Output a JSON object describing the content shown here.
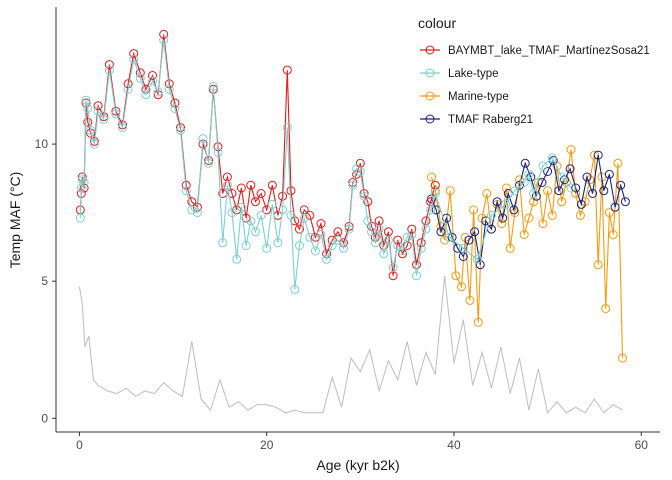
{
  "chart_data": {
    "type": "line",
    "xlabel": "Age (kyr b2k)",
    "ylabel": "Temp MAF (°C)",
    "xlim": [
      -2.5,
      62
    ],
    "ylim": [
      -0.5,
      15
    ],
    "x_ticks": [
      0,
      20,
      40,
      60
    ],
    "y_ticks": [
      0,
      5,
      10
    ],
    "legend_title": "colour",
    "legend_position": "top-right",
    "grid": false,
    "series": [
      {
        "name": "BAYMBT_lake_TMAF_MartínezSosa21",
        "color": "#e41a1c",
        "x": [
          0.1,
          0.2,
          0.3,
          0.5,
          0.7,
          0.9,
          1.2,
          1.6,
          2.0,
          2.6,
          3.2,
          3.9,
          4.6,
          5.2,
          5.8,
          6.5,
          7.1,
          7.8,
          8.4,
          9.0,
          9.6,
          10.2,
          10.8,
          11.4,
          12.0,
          12.6,
          13.2,
          13.8,
          14.3,
          14.8,
          15.3,
          15.8,
          16.3,
          16.8,
          17.3,
          17.8,
          18.3,
          18.8,
          19.4,
          20.0,
          20.6,
          21.2,
          21.7,
          22.2,
          22.6,
          23.0,
          23.5,
          24.0,
          24.6,
          25.2,
          25.8,
          26.4,
          27.0,
          27.6,
          28.2,
          28.8,
          29.2,
          29.6,
          30.0,
          30.4,
          30.8,
          31.2,
          31.6,
          32.0,
          32.5,
          33.0,
          33.5,
          34.0,
          34.5,
          35.0,
          35.5,
          36.0,
          36.5,
          37.0,
          37.5,
          38.0
        ],
        "y": [
          7.6,
          8.2,
          8.8,
          8.4,
          11.5,
          10.8,
          10.4,
          10.1,
          11.4,
          11.0,
          12.9,
          11.2,
          10.7,
          12.2,
          13.3,
          12.6,
          12.0,
          12.5,
          11.8,
          14.0,
          12.2,
          11.5,
          10.6,
          8.5,
          7.9,
          7.7,
          10.0,
          9.4,
          12.0,
          9.9,
          8.2,
          8.8,
          8.2,
          7.6,
          8.4,
          7.3,
          8.5,
          7.9,
          8.2,
          7.6,
          8.5,
          7.4,
          8.1,
          12.7,
          8.3,
          7.2,
          6.9,
          7.6,
          7.4,
          6.6,
          7.1,
          6.0,
          6.5,
          6.8,
          6.4,
          7.0,
          8.6,
          8.9,
          9.3,
          8.2,
          7.9,
          7.0,
          6.6,
          7.2,
          6.3,
          6.8,
          5.2,
          6.5,
          6.0,
          6.3,
          6.9,
          5.6,
          6.4,
          7.2,
          7.9,
          8.5
        ]
      },
      {
        "name": "Lake-type",
        "color": "#7ecfcf",
        "x": [
          0.1,
          0.2,
          0.3,
          0.5,
          0.7,
          0.9,
          1.2,
          1.6,
          2.0,
          2.6,
          3.2,
          3.9,
          4.6,
          5.2,
          5.8,
          6.5,
          7.1,
          7.8,
          8.4,
          9.0,
          9.6,
          10.2,
          10.8,
          11.4,
          12.0,
          12.6,
          13.2,
          13.8,
          14.3,
          14.8,
          15.3,
          15.8,
          16.3,
          16.8,
          17.3,
          17.8,
          18.3,
          18.8,
          19.4,
          20.0,
          20.6,
          21.2,
          21.7,
          22.2,
          22.6,
          23.0,
          23.5,
          24.0,
          24.6,
          25.2,
          25.8,
          26.4,
          27.0,
          27.6,
          28.2,
          28.8,
          29.2,
          29.6,
          30.0,
          30.4,
          30.8,
          31.2,
          31.6,
          32.0,
          32.5,
          33.0,
          33.5,
          34.0,
          34.5,
          35.0,
          35.5,
          36.0,
          36.5,
          37.0,
          37.5,
          38.0,
          39.5,
          41.0,
          42.5,
          44.0,
          45.5,
          46.5,
          47.5,
          48.0,
          48.5,
          49.5,
          50.5,
          51.5,
          52.5
        ],
        "y": [
          7.3,
          8.4,
          8.7,
          8.6,
          11.6,
          11.3,
          10.5,
          10.0,
          11.2,
          10.9,
          12.7,
          11.1,
          10.6,
          12.0,
          13.1,
          12.4,
          11.8,
          12.3,
          11.9,
          13.8,
          12.0,
          11.3,
          10.5,
          8.3,
          7.6,
          7.5,
          10.2,
          9.3,
          12.1,
          9.7,
          6.4,
          8.5,
          7.5,
          5.8,
          7.7,
          6.3,
          7.2,
          6.8,
          7.4,
          6.2,
          7.8,
          6.4,
          7.6,
          10.6,
          7.4,
          4.7,
          6.3,
          7.3,
          6.6,
          6.1,
          6.7,
          5.8,
          6.3,
          6.5,
          6.2,
          6.9,
          8.5,
          9.1,
          9.0,
          8.1,
          7.2,
          6.8,
          6.4,
          6.9,
          6.0,
          6.5,
          5.5,
          6.3,
          6.1,
          6.6,
          6.7,
          5.2,
          6.2,
          6.9,
          7.6,
          8.2,
          6.6,
          6.2,
          5.8,
          7.4,
          7.8,
          8.3,
          8.6,
          8.9,
          8.2,
          9.2,
          9.5,
          8.8,
          8.4
        ]
      },
      {
        "name": "Marine-type",
        "color": "#f39c12",
        "x": [
          37.6,
          38.0,
          38.6,
          39.0,
          39.6,
          40.2,
          40.8,
          41.2,
          41.7,
          42.1,
          42.6,
          43.0,
          43.5,
          44.0,
          44.6,
          45.1,
          45.6,
          46.0,
          46.5,
          47.0,
          47.5,
          48.0,
          48.5,
          49.0,
          49.5,
          50.0,
          50.5,
          51.0,
          51.5,
          52.0,
          52.5,
          53.0,
          53.5,
          54.0,
          54.5,
          55.0,
          55.4,
          55.8,
          56.2,
          56.6,
          57.0,
          57.5,
          58.0
        ],
        "y": [
          8.8,
          8.3,
          7.0,
          6.5,
          8.3,
          5.2,
          4.8,
          6.6,
          4.3,
          7.6,
          3.5,
          7.3,
          8.2,
          6.9,
          7.8,
          7.1,
          8.4,
          6.2,
          7.5,
          8.7,
          6.7,
          7.3,
          7.9,
          8.6,
          7.1,
          8.3,
          7.4,
          9.2,
          7.9,
          8.6,
          9.8,
          8.2,
          7.4,
          7.9,
          8.7,
          9.6,
          5.6,
          8.8,
          4.0,
          7.5,
          6.7,
          9.3,
          2.2
        ]
      },
      {
        "name": "TMAF Raberg21",
        "color": "#1a237e",
        "x": [
          37.6,
          38.1,
          38.6,
          39.2,
          39.8,
          40.4,
          41.0,
          41.6,
          42.2,
          42.8,
          43.4,
          44.0,
          44.6,
          45.2,
          45.8,
          46.4,
          47.0,
          47.6,
          48.2,
          48.8,
          49.4,
          50.0,
          50.6,
          51.2,
          51.8,
          52.4,
          53.0,
          53.6,
          54.2,
          54.8,
          55.4,
          56.0,
          56.6,
          57.2,
          57.8,
          58.3
        ],
        "y": [
          8.0,
          7.6,
          6.8,
          7.3,
          6.6,
          6.2,
          5.9,
          6.5,
          6.8,
          5.6,
          7.2,
          6.9,
          7.9,
          7.3,
          8.2,
          7.6,
          8.5,
          9.3,
          8.8,
          8.1,
          8.6,
          9.0,
          9.4,
          8.3,
          8.7,
          9.1,
          8.4,
          7.8,
          8.8,
          8.2,
          9.6,
          8.3,
          8.9,
          7.7,
          8.5,
          7.9
        ]
      },
      {
        "name": "",
        "color": "#bdbdbd",
        "x": [
          0.0,
          0.3,
          0.6,
          1.0,
          1.5,
          2.0,
          3.0,
          4.0,
          5.0,
          6.0,
          7.0,
          8.0,
          9.0,
          10.0,
          11.0,
          12.0,
          13.0,
          14.0,
          15.0,
          16.0,
          17.0,
          18.0,
          19.0,
          20.0,
          21.0,
          22.0,
          23.0,
          24.0,
          25.0,
          26.0,
          27.0,
          28.0,
          29.0,
          30.0,
          31.0,
          32.0,
          33.0,
          34.0,
          35.0,
          36.0,
          37.0,
          38.0,
          39.0,
          40.0,
          41.0,
          42.0,
          43.0,
          44.0,
          45.0,
          46.0,
          47.0,
          48.0,
          49.0,
          50.0,
          51.0,
          52.0,
          53.0,
          54.0,
          55.0,
          56.0,
          57.0,
          58.0
        ],
        "y": [
          4.8,
          4.2,
          2.6,
          3.0,
          1.4,
          1.2,
          1.0,
          0.9,
          1.1,
          0.8,
          1.0,
          0.9,
          1.3,
          1.0,
          0.8,
          2.8,
          0.7,
          0.3,
          1.4,
          0.4,
          0.6,
          0.3,
          0.5,
          0.5,
          0.4,
          0.2,
          0.3,
          0.2,
          0.2,
          0.2,
          1.5,
          0.4,
          2.2,
          1.7,
          2.5,
          1.0,
          2.1,
          1.4,
          2.8,
          1.2,
          2.4,
          1.6,
          5.2,
          2.0,
          3.6,
          1.2,
          2.4,
          1.1,
          2.6,
          0.9,
          2.2,
          0.3,
          1.8,
          0.2,
          0.6,
          0.2,
          0.4,
          0.2,
          0.7,
          0.2,
          0.5,
          0.3
        ]
      }
    ]
  }
}
